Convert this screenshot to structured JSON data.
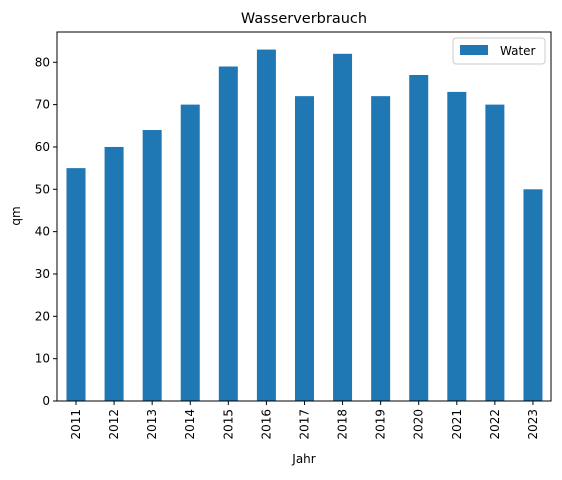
{
  "chart_data": {
    "type": "bar",
    "title": "Wasserverbrauch",
    "xlabel": "Jahr",
    "ylabel": "qm",
    "categories": [
      "2011",
      "2012",
      "2013",
      "2014",
      "2015",
      "2016",
      "2017",
      "2018",
      "2019",
      "2020",
      "2021",
      "2022",
      "2023"
    ],
    "series": [
      {
        "name": "Water",
        "values": [
          55,
          60,
          64,
          70,
          79,
          83,
          72,
          82,
          72,
          77,
          73,
          70,
          50
        ],
        "color": "#1f77b4"
      }
    ],
    "ylim": [
      0,
      87.15
    ],
    "yticks": [
      "0",
      "10",
      "20",
      "30",
      "40",
      "50",
      "60",
      "70",
      "80"
    ],
    "grid": false,
    "legend_position": "upper right"
  }
}
